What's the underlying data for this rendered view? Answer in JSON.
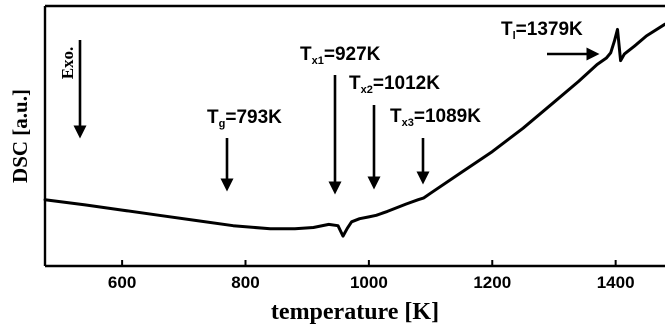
{
  "chart_data": {
    "type": "line",
    "title": "",
    "xlabel": "temperature [K]",
    "ylabel": "DSC [a.u.]",
    "xlim": [
      475,
      1480
    ],
    "ylim": [
      0,
      100
    ],
    "x_ticks": [
      600,
      800,
      1000,
      1200,
      1400
    ],
    "y_ticks_shown": false,
    "grid": false,
    "series": [
      {
        "x": [
          475,
          540,
          600,
          660,
          720,
          780,
          840,
          880,
          910,
          935,
          950,
          958,
          965,
          972,
          985,
          1000,
          1012,
          1030,
          1060,
          1080,
          1089,
          1100,
          1150,
          1200,
          1250,
          1300,
          1340,
          1370,
          1385,
          1392,
          1398,
          1403,
          1408,
          1414,
          1430,
          1450,
          1480
        ],
        "y": [
          25.5,
          23.5,
          21.5,
          19.5,
          17.5,
          15.5,
          14.3,
          14.3,
          14.8,
          16.0,
          15.5,
          11.5,
          14.5,
          17.0,
          18.2,
          18.9,
          19.5,
          21.0,
          23.8,
          25.5,
          26.2,
          28.0,
          36.0,
          44.0,
          53.0,
          63.0,
          71.0,
          77.5,
          80.0,
          82.0,
          86.5,
          91.0,
          79.0,
          81.5,
          84.5,
          88.5,
          93.0
        ]
      }
    ],
    "annotations": [
      {
        "base": "T",
        "sub": "g",
        "value": "=793K",
        "x": 793
      },
      {
        "base": "T",
        "sub": "x1",
        "value": "=927K",
        "x": 955
      },
      {
        "base": "T",
        "sub": "x2",
        "value": "=1012K",
        "x": 1012
      },
      {
        "base": "T",
        "sub": "x3",
        "value": "=1089K",
        "x": 1089
      },
      {
        "base": "T",
        "sub": "l",
        "value": "=1379K",
        "x": 1379
      }
    ],
    "exo_label": "Exo."
  }
}
